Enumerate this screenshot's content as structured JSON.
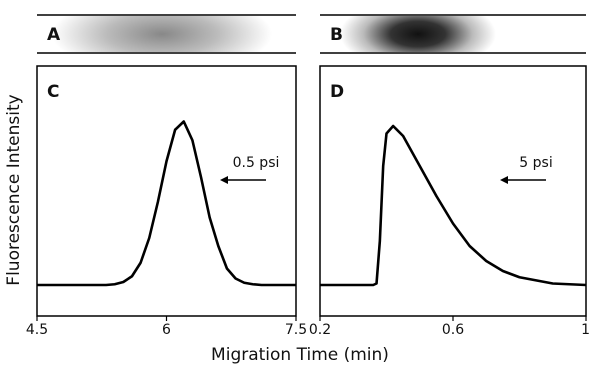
{
  "x_label": "Migration Time (min)",
  "y_label": "Fluorescence Intensity",
  "chart_data": [
    {
      "type": "line",
      "strip_label": "A",
      "panel_label": "C",
      "annotation": "0.5 psi",
      "color": "#000000",
      "xlim": [
        4.5,
        7.5
      ],
      "xticks": [
        4.5,
        6,
        7.5
      ],
      "ylim": [
        0,
        1
      ],
      "x": [
        4.5,
        4.6,
        4.7,
        4.8,
        4.9,
        5.0,
        5.1,
        5.2,
        5.3,
        5.4,
        5.5,
        5.6,
        5.7,
        5.8,
        5.9,
        6.0,
        6.1,
        6.2,
        6.3,
        6.4,
        6.5,
        6.6,
        6.7,
        6.8,
        6.9,
        7.0,
        7.1,
        7.2,
        7.3,
        7.4,
        7.5
      ],
      "values": [
        0.124,
        0.124,
        0.124,
        0.124,
        0.124,
        0.124,
        0.124,
        0.124,
        0.124,
        0.127,
        0.136,
        0.159,
        0.213,
        0.312,
        0.456,
        0.619,
        0.745,
        0.778,
        0.703,
        0.555,
        0.394,
        0.28,
        0.19,
        0.15,
        0.133,
        0.127,
        0.124,
        0.124,
        0.124,
        0.124,
        0.124
      ]
    },
    {
      "type": "line",
      "strip_label": "B",
      "panel_label": "D",
      "annotation": "5 psi",
      "color": "#000000",
      "xlim": [
        0.2,
        1
      ],
      "xticks": [
        0.2,
        0.6,
        1
      ],
      "ylim": [
        0,
        1
      ],
      "x": [
        0.2,
        0.3,
        0.36,
        0.37,
        0.38,
        0.39,
        0.4,
        0.42,
        0.45,
        0.5,
        0.55,
        0.6,
        0.65,
        0.7,
        0.75,
        0.8,
        0.9,
        1.0
      ],
      "values": [
        0.124,
        0.124,
        0.124,
        0.13,
        0.3,
        0.6,
        0.73,
        0.76,
        0.72,
        0.6,
        0.48,
        0.37,
        0.28,
        0.22,
        0.18,
        0.155,
        0.13,
        0.124
      ]
    }
  ]
}
